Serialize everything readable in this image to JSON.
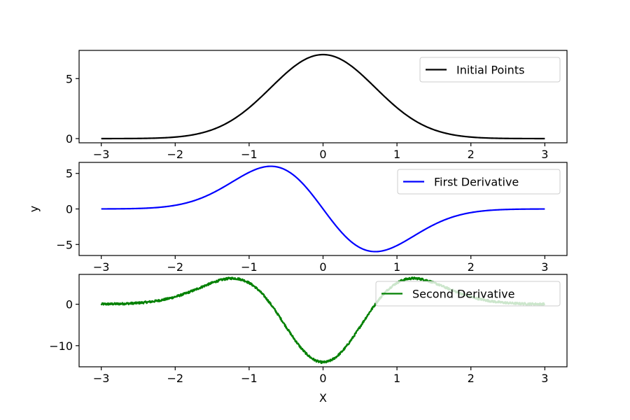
{
  "chart_data": [
    {
      "type": "line",
      "function": "initial",
      "amplitude": 7,
      "xlim": [
        -3.3,
        3.3
      ],
      "ylim": [
        -0.35,
        7.35
      ],
      "xticks": [
        -3,
        -2,
        -1,
        0,
        1,
        2,
        3
      ],
      "xtick_labels": [
        "−3",
        "−2",
        "−1",
        "0",
        "1",
        "2",
        "3"
      ],
      "yticks": [
        0,
        5
      ],
      "ytick_labels": [
        "0",
        "5"
      ],
      "xlabel": "",
      "ylabel": "",
      "legend": "upper-right",
      "series": [
        {
          "name": "Initial Points",
          "color": "#000000",
          "x_range": [
            -3,
            3
          ],
          "noise": 0
        }
      ]
    },
    {
      "type": "line",
      "function": "first_derivative",
      "amplitude": 7,
      "xlim": [
        -3.3,
        3.3
      ],
      "ylim": [
        -6.55,
        6.55
      ],
      "xticks": [
        -3,
        -2,
        -1,
        0,
        1,
        2,
        3
      ],
      "xtick_labels": [
        "−3",
        "−2",
        "−1",
        "0",
        "1",
        "2",
        "3"
      ],
      "yticks": [
        -5,
        0,
        5
      ],
      "ytick_labels": [
        "−5",
        "0",
        "5"
      ],
      "xlabel": "",
      "ylabel": "y",
      "legend": "upper-right",
      "series": [
        {
          "name": "First Derivative",
          "color": "#0000ff",
          "x_range": [
            -3,
            3
          ],
          "noise": 0
        }
      ]
    },
    {
      "type": "line",
      "function": "second_derivative",
      "amplitude": 7,
      "xlim": [
        -3.3,
        3.3
      ],
      "ylim": [
        -15.1,
        7.2
      ],
      "xticks": [
        -3,
        -2,
        -1,
        0,
        1,
        2,
        3
      ],
      "xtick_labels": [
        "−3",
        "−2",
        "−1",
        "0",
        "1",
        "2",
        "3"
      ],
      "yticks": [
        -10,
        0
      ],
      "ytick_labels": [
        "−10",
        "0"
      ],
      "xlabel": "X",
      "ylabel": "",
      "legend": "upper-right",
      "series": [
        {
          "name": "Second Derivative",
          "color": "#008000",
          "x_range": [
            -3,
            3
          ],
          "noise": 0.25
        }
      ]
    }
  ]
}
